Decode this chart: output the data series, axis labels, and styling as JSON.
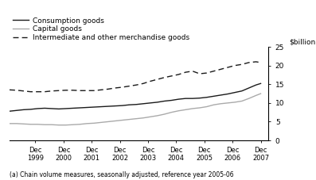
{
  "footnote": "(a) Chain volume measures, seasonally adjusted, reference year 2005-06",
  "ylabel": "$billion",
  "xlim_start": 1999.0,
  "xlim_end": 2008.2,
  "ylim": [
    0,
    25
  ],
  "yticks": [
    0,
    5,
    10,
    15,
    20,
    25
  ],
  "xtick_labels": [
    "Dec\n1999",
    "Dec\n2000",
    "Dec\n2001",
    "Dec\n2002",
    "Dec\n2003",
    "Dec\n2004",
    "Dec\n2005",
    "Dec\n2006",
    "Dec\n2007"
  ],
  "xtick_positions": [
    1999.92,
    2000.92,
    2001.92,
    2002.92,
    2003.92,
    2004.92,
    2005.92,
    2006.92,
    2007.92
  ],
  "consumption_goods": {
    "label": "Consumption goods",
    "color": "#1a1a1a",
    "linestyle": "-",
    "linewidth": 1.0,
    "x": [
      1999.0,
      1999.25,
      1999.5,
      1999.75,
      2000.0,
      2000.25,
      2000.5,
      2000.75,
      2001.0,
      2001.25,
      2001.5,
      2001.75,
      2002.0,
      2002.25,
      2002.5,
      2002.75,
      2003.0,
      2003.25,
      2003.5,
      2003.75,
      2004.0,
      2004.25,
      2004.5,
      2004.75,
      2005.0,
      2005.25,
      2005.5,
      2005.75,
      2006.0,
      2006.25,
      2006.5,
      2006.75,
      2007.0,
      2007.25,
      2007.5,
      2007.75,
      2007.92
    ],
    "y": [
      7.8,
      8.0,
      8.2,
      8.3,
      8.5,
      8.6,
      8.5,
      8.4,
      8.5,
      8.6,
      8.7,
      8.8,
      8.9,
      9.0,
      9.1,
      9.2,
      9.3,
      9.5,
      9.6,
      9.8,
      10.0,
      10.2,
      10.5,
      10.7,
      11.0,
      11.2,
      11.2,
      11.3,
      11.5,
      11.8,
      12.1,
      12.4,
      12.8,
      13.2,
      14.0,
      14.8,
      15.2
    ]
  },
  "capital_goods": {
    "label": "Capital goods",
    "color": "#aaaaaa",
    "linestyle": "-",
    "linewidth": 1.0,
    "x": [
      1999.0,
      1999.25,
      1999.5,
      1999.75,
      2000.0,
      2000.25,
      2000.5,
      2000.75,
      2001.0,
      2001.25,
      2001.5,
      2001.75,
      2002.0,
      2002.25,
      2002.5,
      2002.75,
      2003.0,
      2003.25,
      2003.5,
      2003.75,
      2004.0,
      2004.25,
      2004.5,
      2004.75,
      2005.0,
      2005.25,
      2005.5,
      2005.75,
      2006.0,
      2006.25,
      2006.5,
      2006.75,
      2007.0,
      2007.25,
      2007.5,
      2007.75,
      2007.92
    ],
    "y": [
      4.5,
      4.5,
      4.4,
      4.3,
      4.3,
      4.2,
      4.2,
      4.1,
      4.1,
      4.2,
      4.3,
      4.5,
      4.6,
      4.8,
      5.0,
      5.2,
      5.4,
      5.6,
      5.8,
      6.0,
      6.3,
      6.6,
      7.0,
      7.5,
      7.9,
      8.2,
      8.5,
      8.7,
      9.0,
      9.5,
      9.8,
      10.0,
      10.2,
      10.5,
      11.2,
      12.0,
      12.5
    ]
  },
  "intermediate_goods": {
    "label": "Intermediate and other merchandise goods",
    "color": "#1a1a1a",
    "linestyle": "--",
    "linewidth": 1.0,
    "x": [
      1999.0,
      1999.25,
      1999.5,
      1999.75,
      2000.0,
      2000.25,
      2000.5,
      2000.75,
      2001.0,
      2001.25,
      2001.5,
      2001.75,
      2002.0,
      2002.25,
      2002.5,
      2002.75,
      2003.0,
      2003.25,
      2003.5,
      2003.75,
      2004.0,
      2004.25,
      2004.5,
      2004.75,
      2005.0,
      2005.25,
      2005.5,
      2005.75,
      2006.0,
      2006.25,
      2006.5,
      2006.75,
      2007.0,
      2007.25,
      2007.5,
      2007.75,
      2007.92
    ],
    "y": [
      13.5,
      13.4,
      13.2,
      13.0,
      13.0,
      13.0,
      13.2,
      13.3,
      13.4,
      13.4,
      13.3,
      13.3,
      13.3,
      13.5,
      13.7,
      14.0,
      14.2,
      14.5,
      14.8,
      15.2,
      15.8,
      16.3,
      16.8,
      17.2,
      17.6,
      18.2,
      18.5,
      17.8,
      18.0,
      18.5,
      19.0,
      19.5,
      20.0,
      20.3,
      20.8,
      21.0,
      20.8
    ]
  }
}
